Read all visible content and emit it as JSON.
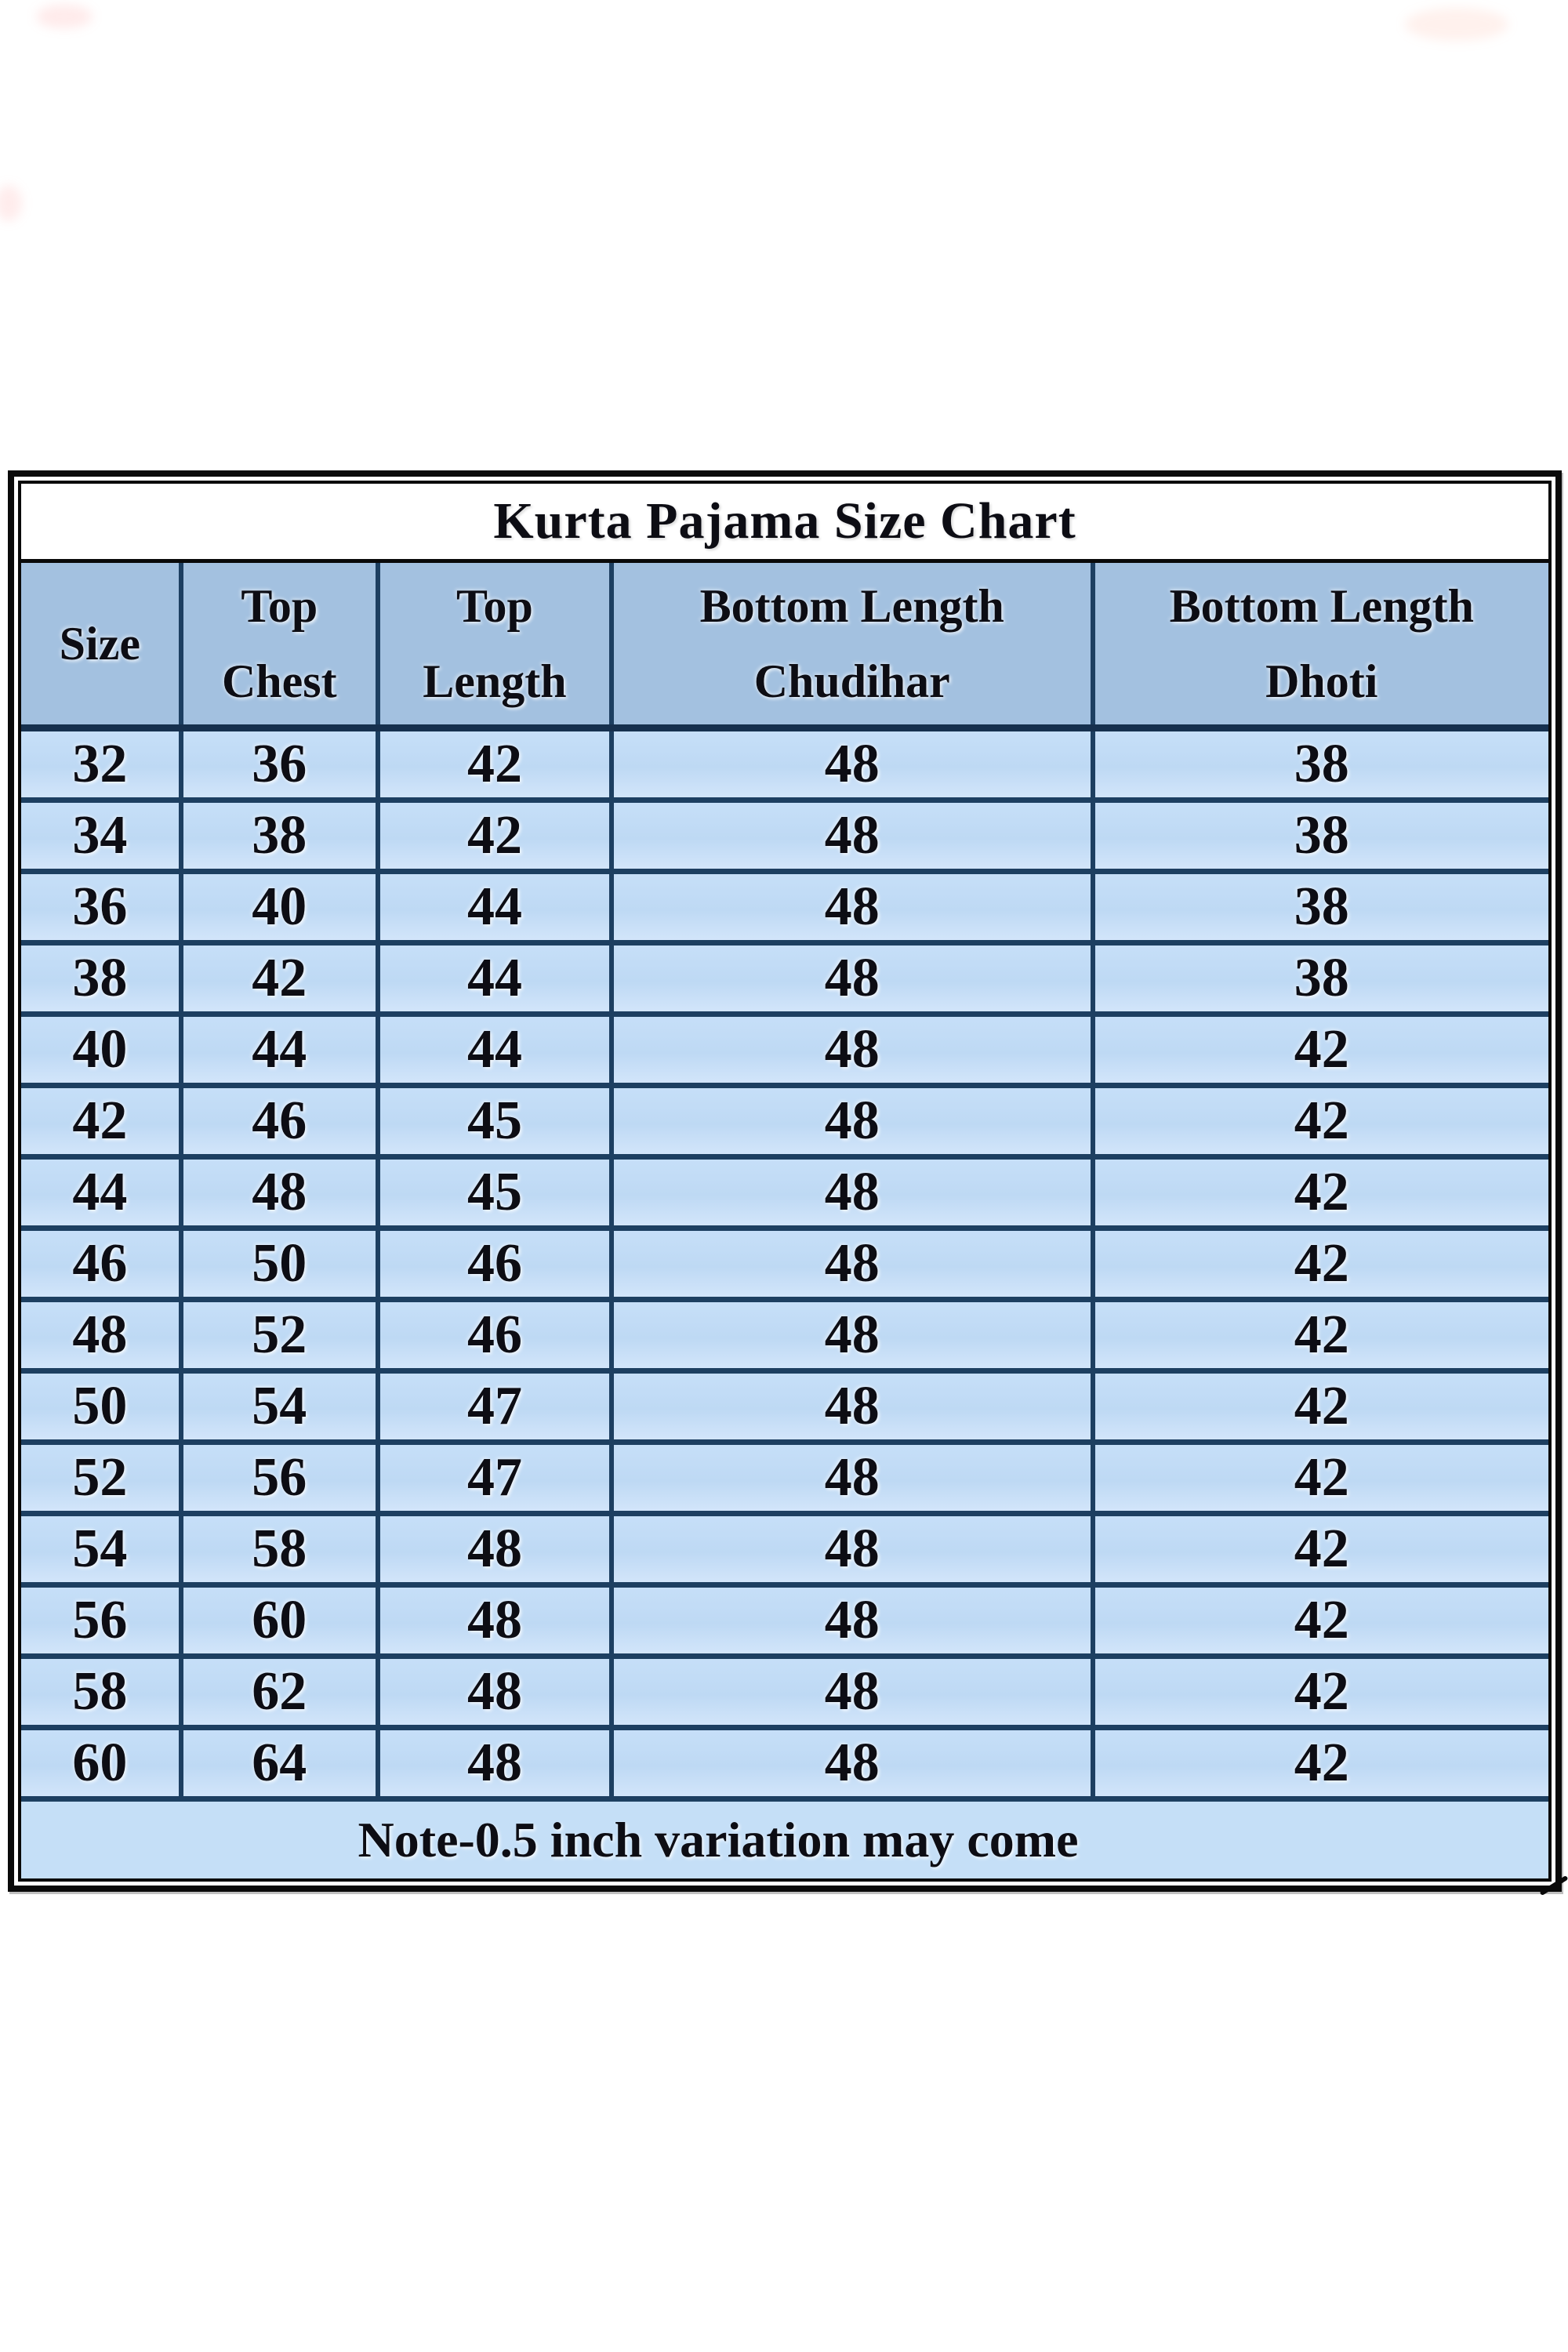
{
  "page": {
    "background": "#ffffff"
  },
  "chart_data": {
    "type": "table",
    "title": "Kurta Pajama Size Chart",
    "columns": [
      {
        "name": "Size",
        "lines": [
          "Size"
        ]
      },
      {
        "name": "Top Chest",
        "lines": [
          "Top",
          "Chest"
        ]
      },
      {
        "name": "Top Length",
        "lines": [
          "Top",
          "Length"
        ]
      },
      {
        "name": "Bottom Length Chudihar",
        "lines": [
          "Bottom Length",
          "Chudihar"
        ]
      },
      {
        "name": "Bottom Length Dhoti",
        "lines": [
          "Bottom Length",
          "Dhoti"
        ]
      }
    ],
    "rows": [
      [
        32,
        36,
        42,
        48,
        38
      ],
      [
        34,
        38,
        42,
        48,
        38
      ],
      [
        36,
        40,
        44,
        48,
        38
      ],
      [
        38,
        42,
        44,
        48,
        38
      ],
      [
        40,
        44,
        44,
        48,
        42
      ],
      [
        42,
        46,
        45,
        48,
        42
      ],
      [
        44,
        48,
        45,
        48,
        42
      ],
      [
        46,
        50,
        46,
        48,
        42
      ],
      [
        48,
        52,
        46,
        48,
        42
      ],
      [
        50,
        54,
        47,
        48,
        42
      ],
      [
        52,
        56,
        47,
        48,
        42
      ],
      [
        54,
        58,
        48,
        48,
        42
      ],
      [
        56,
        60,
        48,
        48,
        42
      ],
      [
        58,
        62,
        48,
        48,
        42
      ],
      [
        60,
        64,
        48,
        48,
        42
      ]
    ],
    "note": "Note-0.5 inch variation may come",
    "layout": {
      "grid": "on",
      "legend": "none"
    },
    "colors": {
      "header_bg": "#a3c1e0",
      "row_bg": "#bed9f4",
      "note_bg": "#c5dff7",
      "grid": "#1d3f61",
      "header_sep": "#16304e",
      "border": "#0a0a0a",
      "title_bg": "#ffffff",
      "text": "#0d0d14"
    }
  }
}
